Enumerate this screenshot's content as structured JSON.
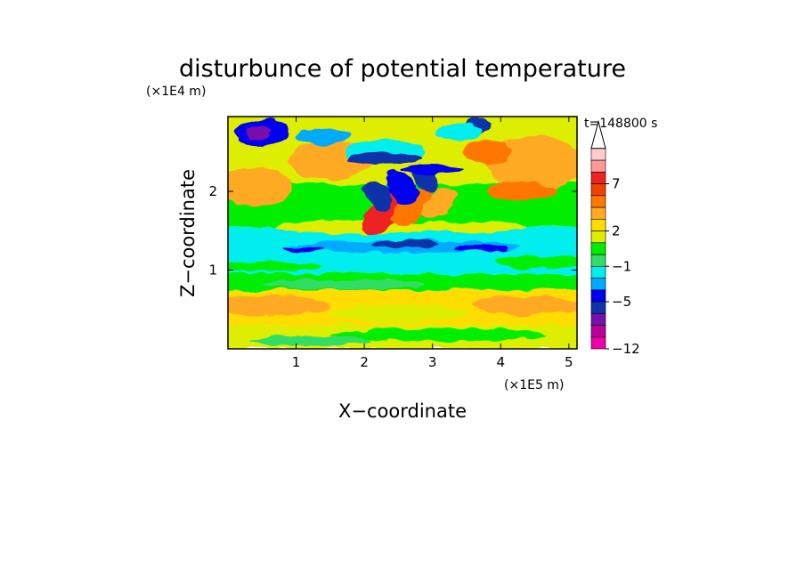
{
  "chart_data": {
    "type": "heatmap",
    "title": "disturbunce of potential temperature",
    "time_label": "t=148800 s",
    "xlabel": "X−coordinate",
    "ylabel": "Z−coordinate",
    "x_scale_label": "(×1E5 m)",
    "y_scale_label": "(×1E4 m)",
    "xlim": [
      0,
      5.12
    ],
    "ylim": [
      0,
      2.95
    ],
    "x_ticks": [
      {
        "value": 1,
        "label": "1"
      },
      {
        "value": 2,
        "label": "2"
      },
      {
        "value": 3,
        "label": "3"
      },
      {
        "value": 4,
        "label": "4"
      },
      {
        "value": 5,
        "label": "5"
      }
    ],
    "y_ticks": [
      {
        "value": 1,
        "label": "1"
      },
      {
        "value": 2,
        "label": "2"
      }
    ],
    "colorbar": {
      "colors": [
        "#ee00aa",
        "#bb0099",
        "#7711aa",
        "#1133aa",
        "#0000ee",
        "#00aaff",
        "#00eeee",
        "#33dd66",
        "#00ee00",
        "#ddee00",
        "#ffdd00",
        "#ffaa22",
        "#ff7700",
        "#ee4400",
        "#ee2222",
        "#ff9999",
        "#ffcccc"
      ],
      "labels": [
        {
          "value": "−12",
          "level": 0
        },
        {
          "value": "−5",
          "level": 4
        },
        {
          "value": "−1",
          "level": 7
        },
        {
          "value": "2",
          "level": 10
        },
        {
          "value": "7",
          "level": 14
        }
      ],
      "extend": "max"
    },
    "field_colors": {
      "deep_negative": "#7711aa",
      "strong_negative": "#1133aa",
      "negative": "#0000ee",
      "weak_negative": "#00aaff",
      "slight_negative": "#00eeee",
      "near_zero_low": "#33dd66",
      "near_zero": "#00ee00",
      "slight_positive": "#ddee00",
      "positive": "#ffdd00",
      "moderate_positive": "#ffaa22",
      "strong_positive": "#ff7700",
      "very_strong_positive": "#ee2222"
    }
  }
}
